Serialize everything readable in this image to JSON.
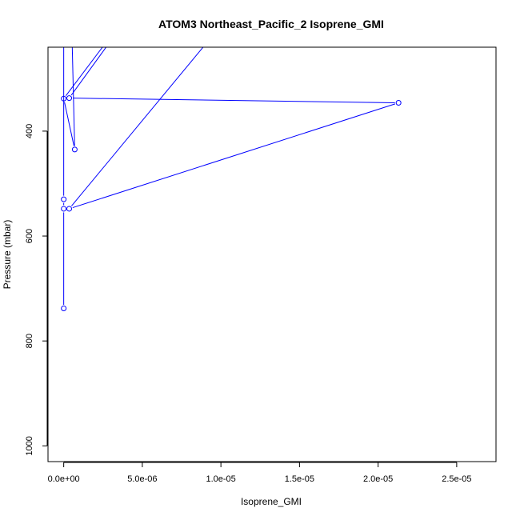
{
  "chart_data": {
    "type": "line",
    "title": "ATOM3 Northeast_Pacific_2 Isoprene_GMI",
    "xlabel": "Isoprene_GMI",
    "ylabel": "Pressure (mbar)",
    "xlim": [
      -1e-06,
      2.75e-05
    ],
    "ylim": [
      1030,
      240
    ],
    "y_reversed": true,
    "grid": false,
    "x_ticks": [
      {
        "value": 0,
        "label": "0.0e+00"
      },
      {
        "value": 5e-06,
        "label": "5.0e-06"
      },
      {
        "value": 1e-05,
        "label": "1.0e-05"
      },
      {
        "value": 1.5e-05,
        "label": "1.5e-05"
      },
      {
        "value": 2e-05,
        "label": "2.0e-05"
      },
      {
        "value": 2.5e-05,
        "label": "2.5e-05"
      }
    ],
    "y_ticks": [
      {
        "value": 400,
        "label": "400"
      },
      {
        "value": 600,
        "label": "600"
      },
      {
        "value": 800,
        "label": "800"
      },
      {
        "value": 1000,
        "label": "1000"
      }
    ],
    "series": [
      {
        "color": "#0000ff",
        "points": [
          {
            "x": 0,
            "y": 738
          },
          {
            "x": 0,
            "y": 548
          },
          {
            "x": 0,
            "y": 530
          },
          {
            "x": 0,
            "y": 0
          },
          {
            "x": 3.5e-07,
            "y": 0
          },
          {
            "x": 7e-07,
            "y": 435
          },
          {
            "x": 0,
            "y": 338
          },
          {
            "x": 8.5e-06,
            "y": 0
          },
          {
            "x": 3.5e-07,
            "y": 337
          },
          {
            "x": 2.13e-05,
            "y": 346
          },
          {
            "x": 3.5e-07,
            "y": 548
          },
          {
            "x": 1.55e-05,
            "y": 0
          }
        ]
      }
    ]
  }
}
